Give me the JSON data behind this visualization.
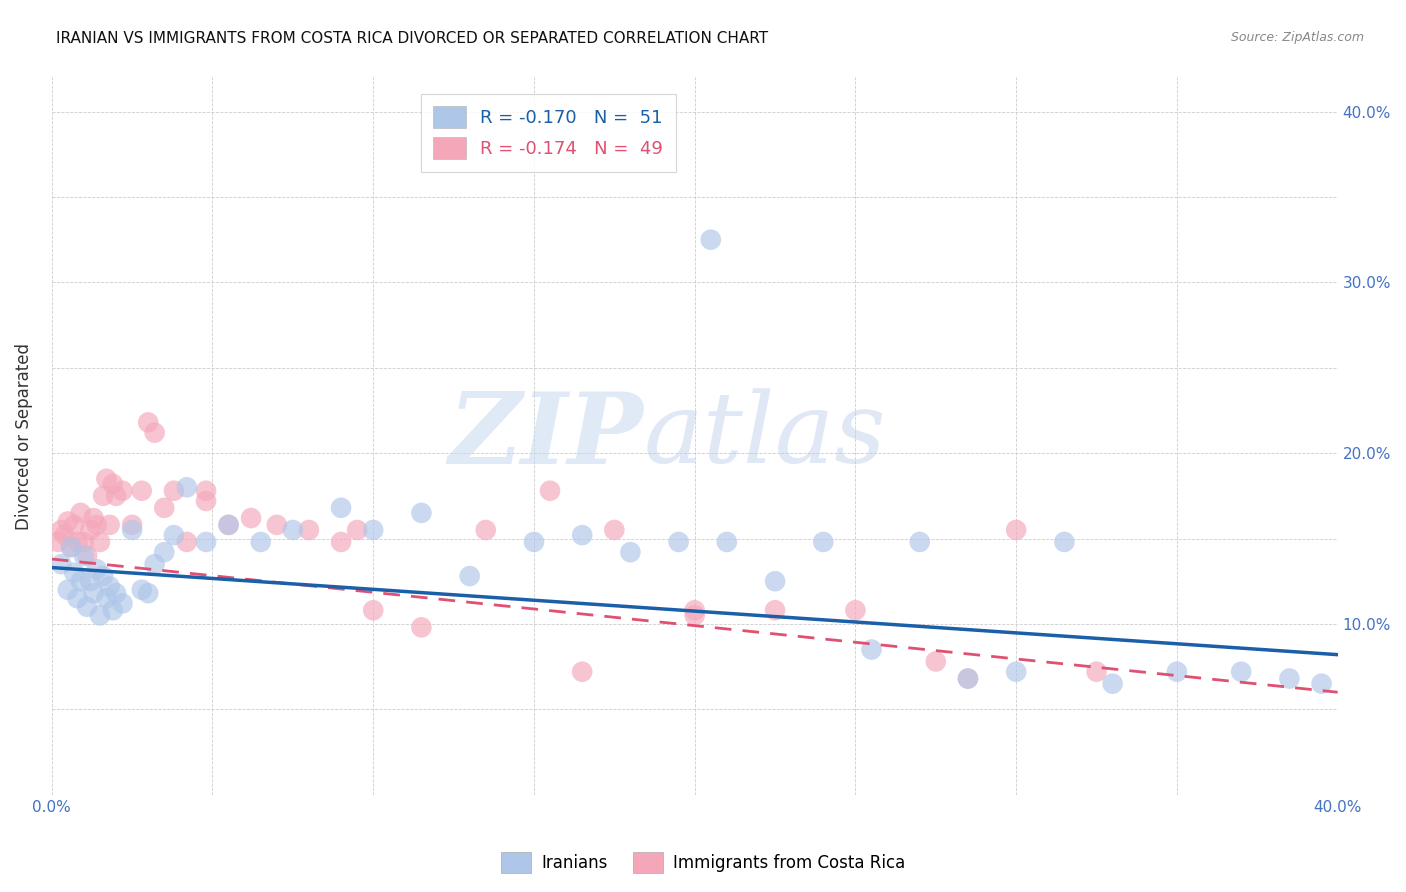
{
  "title": "IRANIAN VS IMMIGRANTS FROM COSTA RICA DIVORCED OR SEPARATED CORRELATION CHART",
  "source": "Source: ZipAtlas.com",
  "ylabel": "Divorced or Separated",
  "xlim": [
    0.0,
    0.4
  ],
  "ylim": [
    0.0,
    0.42
  ],
  "xtick_positions": [
    0.0,
    0.05,
    0.1,
    0.15,
    0.2,
    0.25,
    0.3,
    0.35,
    0.4
  ],
  "xticklabels": [
    "0.0%",
    "",
    "",
    "",
    "",
    "",
    "",
    "",
    "40.0%"
  ],
  "ytick_positions": [
    0.0,
    0.05,
    0.1,
    0.15,
    0.2,
    0.25,
    0.3,
    0.35,
    0.4
  ],
  "yticklabels_right": [
    "",
    "",
    "10.0%",
    "",
    "20.0%",
    "",
    "30.0%",
    "",
    "40.0%"
  ],
  "legend_label_blue": "R = -0.170   N =  51",
  "legend_label_pink": "R = -0.174   N =  49",
  "legend_labels_bottom": [
    "Iranians",
    "Immigrants from Costa Rica"
  ],
  "scatter_iranians_x": [
    0.003,
    0.005,
    0.006,
    0.007,
    0.008,
    0.009,
    0.01,
    0.011,
    0.012,
    0.013,
    0.014,
    0.015,
    0.016,
    0.017,
    0.018,
    0.019,
    0.02,
    0.022,
    0.025,
    0.028,
    0.03,
    0.032,
    0.035,
    0.038,
    0.042,
    0.048,
    0.055,
    0.065,
    0.075,
    0.09,
    0.1,
    0.115,
    0.13,
    0.15,
    0.165,
    0.18,
    0.195,
    0.21,
    0.225,
    0.24,
    0.255,
    0.27,
    0.285,
    0.3,
    0.315,
    0.33,
    0.35,
    0.37,
    0.385,
    0.395,
    0.205
  ],
  "scatter_iranians_y": [
    0.135,
    0.12,
    0.145,
    0.13,
    0.115,
    0.125,
    0.14,
    0.11,
    0.125,
    0.118,
    0.132,
    0.105,
    0.128,
    0.115,
    0.122,
    0.108,
    0.118,
    0.112,
    0.155,
    0.12,
    0.118,
    0.135,
    0.142,
    0.152,
    0.18,
    0.148,
    0.158,
    0.148,
    0.155,
    0.168,
    0.155,
    0.165,
    0.128,
    0.148,
    0.152,
    0.142,
    0.148,
    0.148,
    0.125,
    0.148,
    0.085,
    0.148,
    0.068,
    0.072,
    0.148,
    0.065,
    0.072,
    0.072,
    0.068,
    0.065,
    0.325
  ],
  "scatter_costarica_x": [
    0.002,
    0.003,
    0.004,
    0.005,
    0.006,
    0.007,
    0.008,
    0.009,
    0.01,
    0.011,
    0.012,
    0.013,
    0.014,
    0.015,
    0.016,
    0.017,
    0.018,
    0.019,
    0.02,
    0.022,
    0.025,
    0.028,
    0.03,
    0.032,
    0.035,
    0.038,
    0.042,
    0.048,
    0.055,
    0.062,
    0.07,
    0.08,
    0.09,
    0.1,
    0.115,
    0.135,
    0.155,
    0.175,
    0.2,
    0.225,
    0.25,
    0.275,
    0.3,
    0.325,
    0.2,
    0.285,
    0.095,
    0.165,
    0.048
  ],
  "scatter_costarica_y": [
    0.148,
    0.155,
    0.152,
    0.16,
    0.145,
    0.158,
    0.148,
    0.165,
    0.148,
    0.14,
    0.155,
    0.162,
    0.158,
    0.148,
    0.175,
    0.185,
    0.158,
    0.182,
    0.175,
    0.178,
    0.158,
    0.178,
    0.218,
    0.212,
    0.168,
    0.178,
    0.148,
    0.172,
    0.158,
    0.162,
    0.158,
    0.155,
    0.148,
    0.108,
    0.098,
    0.155,
    0.178,
    0.155,
    0.108,
    0.108,
    0.108,
    0.078,
    0.155,
    0.072,
    0.105,
    0.068,
    0.155,
    0.072,
    0.178
  ],
  "line_start_x": 0.0,
  "line_end_x_iranian": 0.4,
  "line_end_x_costarica": 0.4,
  "line_iranian_start_y": 0.133,
  "line_iranian_end_y": 0.082,
  "line_costarica_start_y": 0.138,
  "line_costarica_end_y": 0.06,
  "line_iranian_color": "#1a5fa8",
  "line_costarica_color": "#e05070",
  "scatter_iranian_color": "#aec6e8",
  "scatter_costarica_color": "#f4a7b9",
  "watermark_zip": "ZIP",
  "watermark_atlas": "atlas",
  "title_fontsize": 11,
  "source_fontsize": 9,
  "tick_color": "#4472c4",
  "grid_color": "#c8c8c8"
}
